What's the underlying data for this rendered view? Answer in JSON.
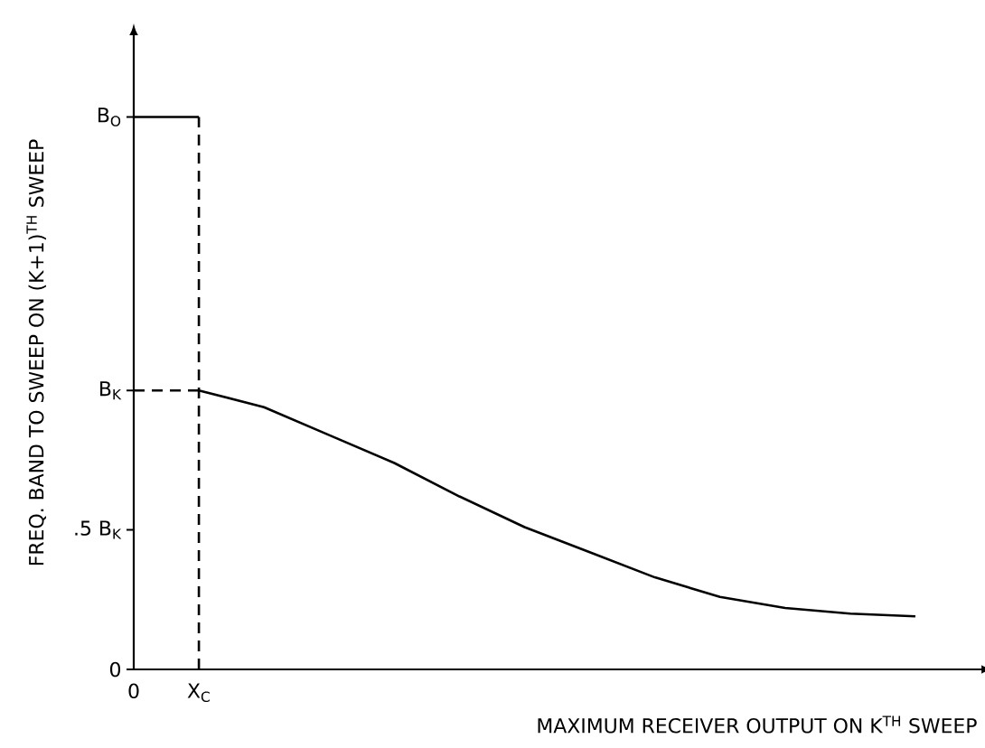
{
  "chart_data": {
    "type": "line",
    "xlabel": "MAXIMUM RECEIVER OUTPUT ON K$^{TH}$ SWEEP",
    "ylabel": "FREQ. BAND TO SWEEP ON (K+1)$^{TH}$ SWEEP",
    "categories": [
      "0",
      "X$_{C}$",
      null,
      null,
      null,
      null,
      null,
      null,
      null,
      null,
      null,
      null,
      null
    ],
    "ylim": [
      0,
      2.27
    ],
    "yticks": [
      0,
      {
        "value": 0.5,
        "label": ".5 B$_{K}$"
      },
      {
        "value": 1,
        "label": "B$_{K}$"
      },
      {
        "value": 1.98,
        "label": "B$_{O}$"
      }
    ],
    "marker": "none",
    "ref_lines": [
      {
        "axis": "x",
        "value": "X$_{C}$",
        "line_style": "dashed",
        "color": "#000000"
      }
    ],
    "series": [
      {
        "color": "#000000",
        "line_style": "solid",
        "values": [
          1.98,
          1.98,
          null,
          null,
          null,
          null,
          null,
          null,
          null,
          null,
          null,
          null,
          null
        ]
      },
      {
        "color": "#000000",
        "line_style": "dashed",
        "values": [
          1,
          1,
          null,
          null,
          null,
          null,
          null,
          null,
          null,
          null,
          null,
          null,
          null
        ]
      },
      {
        "color": "#000000",
        "line_style": "solid",
        "values": [
          null,
          1,
          0.94,
          0.84,
          0.74,
          0.62,
          0.51,
          0.42,
          0.33,
          0.26,
          0.22,
          0.2,
          0.19
        ]
      }
    ]
  }
}
